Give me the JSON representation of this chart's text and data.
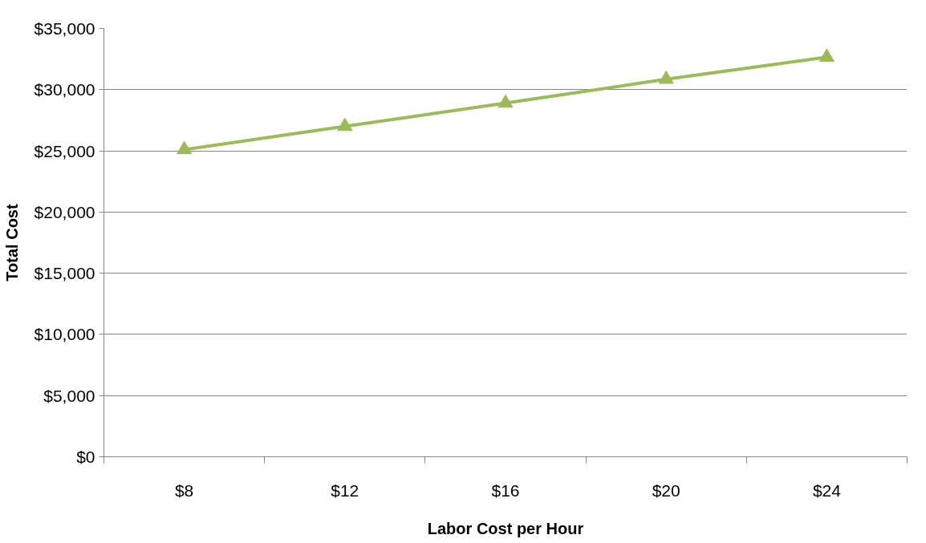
{
  "chart_data": {
    "type": "line",
    "xlabel": "Labor Cost per Hour",
    "ylabel": "Total Cost",
    "categories": [
      "$8",
      "$12",
      "$16",
      "$20",
      "$24"
    ],
    "series": [
      {
        "color": "#9bbb59",
        "values": [
          25100,
          27000,
          28900,
          30850,
          32650
        ]
      }
    ],
    "ylim": [
      0,
      35000
    ],
    "yticks": [
      {
        "value": 0,
        "label": "$0"
      },
      {
        "value": 5000,
        "label": "$5,000"
      },
      {
        "value": 10000,
        "label": "$10,000"
      },
      {
        "value": 15000,
        "label": "$15,000"
      },
      {
        "value": 20000,
        "label": "$20,000"
      },
      {
        "value": 25000,
        "label": "$25,000"
      },
      {
        "value": 30000,
        "label": "$30,000"
      },
      {
        "value": 35000,
        "label": "$35,000"
      }
    ],
    "grid": "y",
    "marker": "triangle",
    "line_style": "solid"
  }
}
